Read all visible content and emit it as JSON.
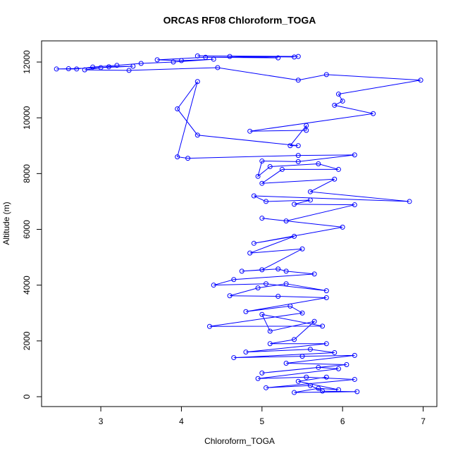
{
  "chart_data": {
    "type": "line",
    "title": "ORCAS RF08 Chloroform_TOGA",
    "x_label": "Chloroform_TOGA",
    "y_label": "Altitude (m)",
    "color": "#0000ff",
    "xlim": [
      2.265,
      7.17
    ],
    "xticks": [
      3,
      4,
      5,
      6,
      7
    ],
    "ylim": [
      -354,
      12759
    ],
    "yticks": [
      0,
      2000,
      4000,
      6000,
      8000,
      10000,
      12000
    ],
    "x": [
      5.45,
      4.2,
      5.4,
      4.6,
      5.2,
      4.3,
      3.7,
      4.0,
      4.4,
      3.9,
      3.5,
      3.2,
      2.9,
      2.7,
      2.45,
      2.6,
      3.0,
      3.4,
      3.1,
      2.8,
      3.35,
      4.45,
      5.45,
      5.8,
      6.97,
      5.95,
      6.0,
      5.9,
      6.38,
      4.85,
      5.55,
      5.55,
      5.35,
      5.45,
      4.2,
      3.95,
      4.2,
      3.95,
      4.08,
      5.45,
      6.15,
      5.45,
      5.0,
      4.95,
      5.1,
      5.7,
      5.95,
      5.25,
      5.0,
      5.9,
      5.6,
      6.83,
      4.9,
      5.05,
      5.6,
      5.4,
      6.15,
      5.3,
      5.0,
      6.0,
      4.9,
      5.4,
      4.85,
      5.5,
      5.0,
      4.75,
      5.2,
      5.3,
      5.65,
      4.65,
      4.4,
      5.05,
      5.8,
      5.3,
      4.95,
      4.6,
      5.2,
      5.8,
      4.8,
      5.35,
      5.5,
      4.35,
      5.75,
      5.0,
      5.1,
      5.65,
      5.4,
      5.1,
      5.8,
      4.8,
      5.6,
      5.9,
      4.65,
      5.5,
      6.15,
      5.3,
      6.05,
      5.0,
      5.7,
      5.95,
      4.95,
      5.55,
      6.15,
      5.05,
      5.6,
      5.75,
      6.18,
      5.4,
      5.7,
      5.95,
      5.45,
      5.8
    ],
    "values": [
      12200,
      12220,
      12180,
      12200,
      12150,
      12170,
      12080,
      12050,
      12100,
      12000,
      11950,
      11880,
      11820,
      11750,
      11750,
      11760,
      11800,
      11850,
      11830,
      11720,
      11700,
      11800,
      11350,
      11550,
      11350,
      10850,
      10600,
      10450,
      10150,
      9520,
      9550,
      9720,
      9000,
      9000,
      9380,
      10320,
      11300,
      8600,
      8550,
      8650,
      8670,
      8430,
      8450,
      7900,
      8250,
      8350,
      8150,
      8150,
      7650,
      7800,
      7350,
      7000,
      7200,
      7000,
      7050,
      6900,
      6880,
      6300,
      6400,
      6080,
      5500,
      5750,
      5150,
      5300,
      4550,
      4500,
      4580,
      4500,
      4400,
      4200,
      4000,
      4050,
      3800,
      4050,
      3900,
      3620,
      3600,
      3550,
      3050,
      3250,
      3000,
      2520,
      2530,
      2950,
      2350,
      2700,
      2050,
      1900,
      1900,
      1600,
      1700,
      1580,
      1400,
      1450,
      1480,
      1200,
      1150,
      850,
      1050,
      1000,
      650,
      700,
      620,
      320,
      400,
      200,
      180,
      150,
      300,
      250,
      550,
      700
    ]
  }
}
